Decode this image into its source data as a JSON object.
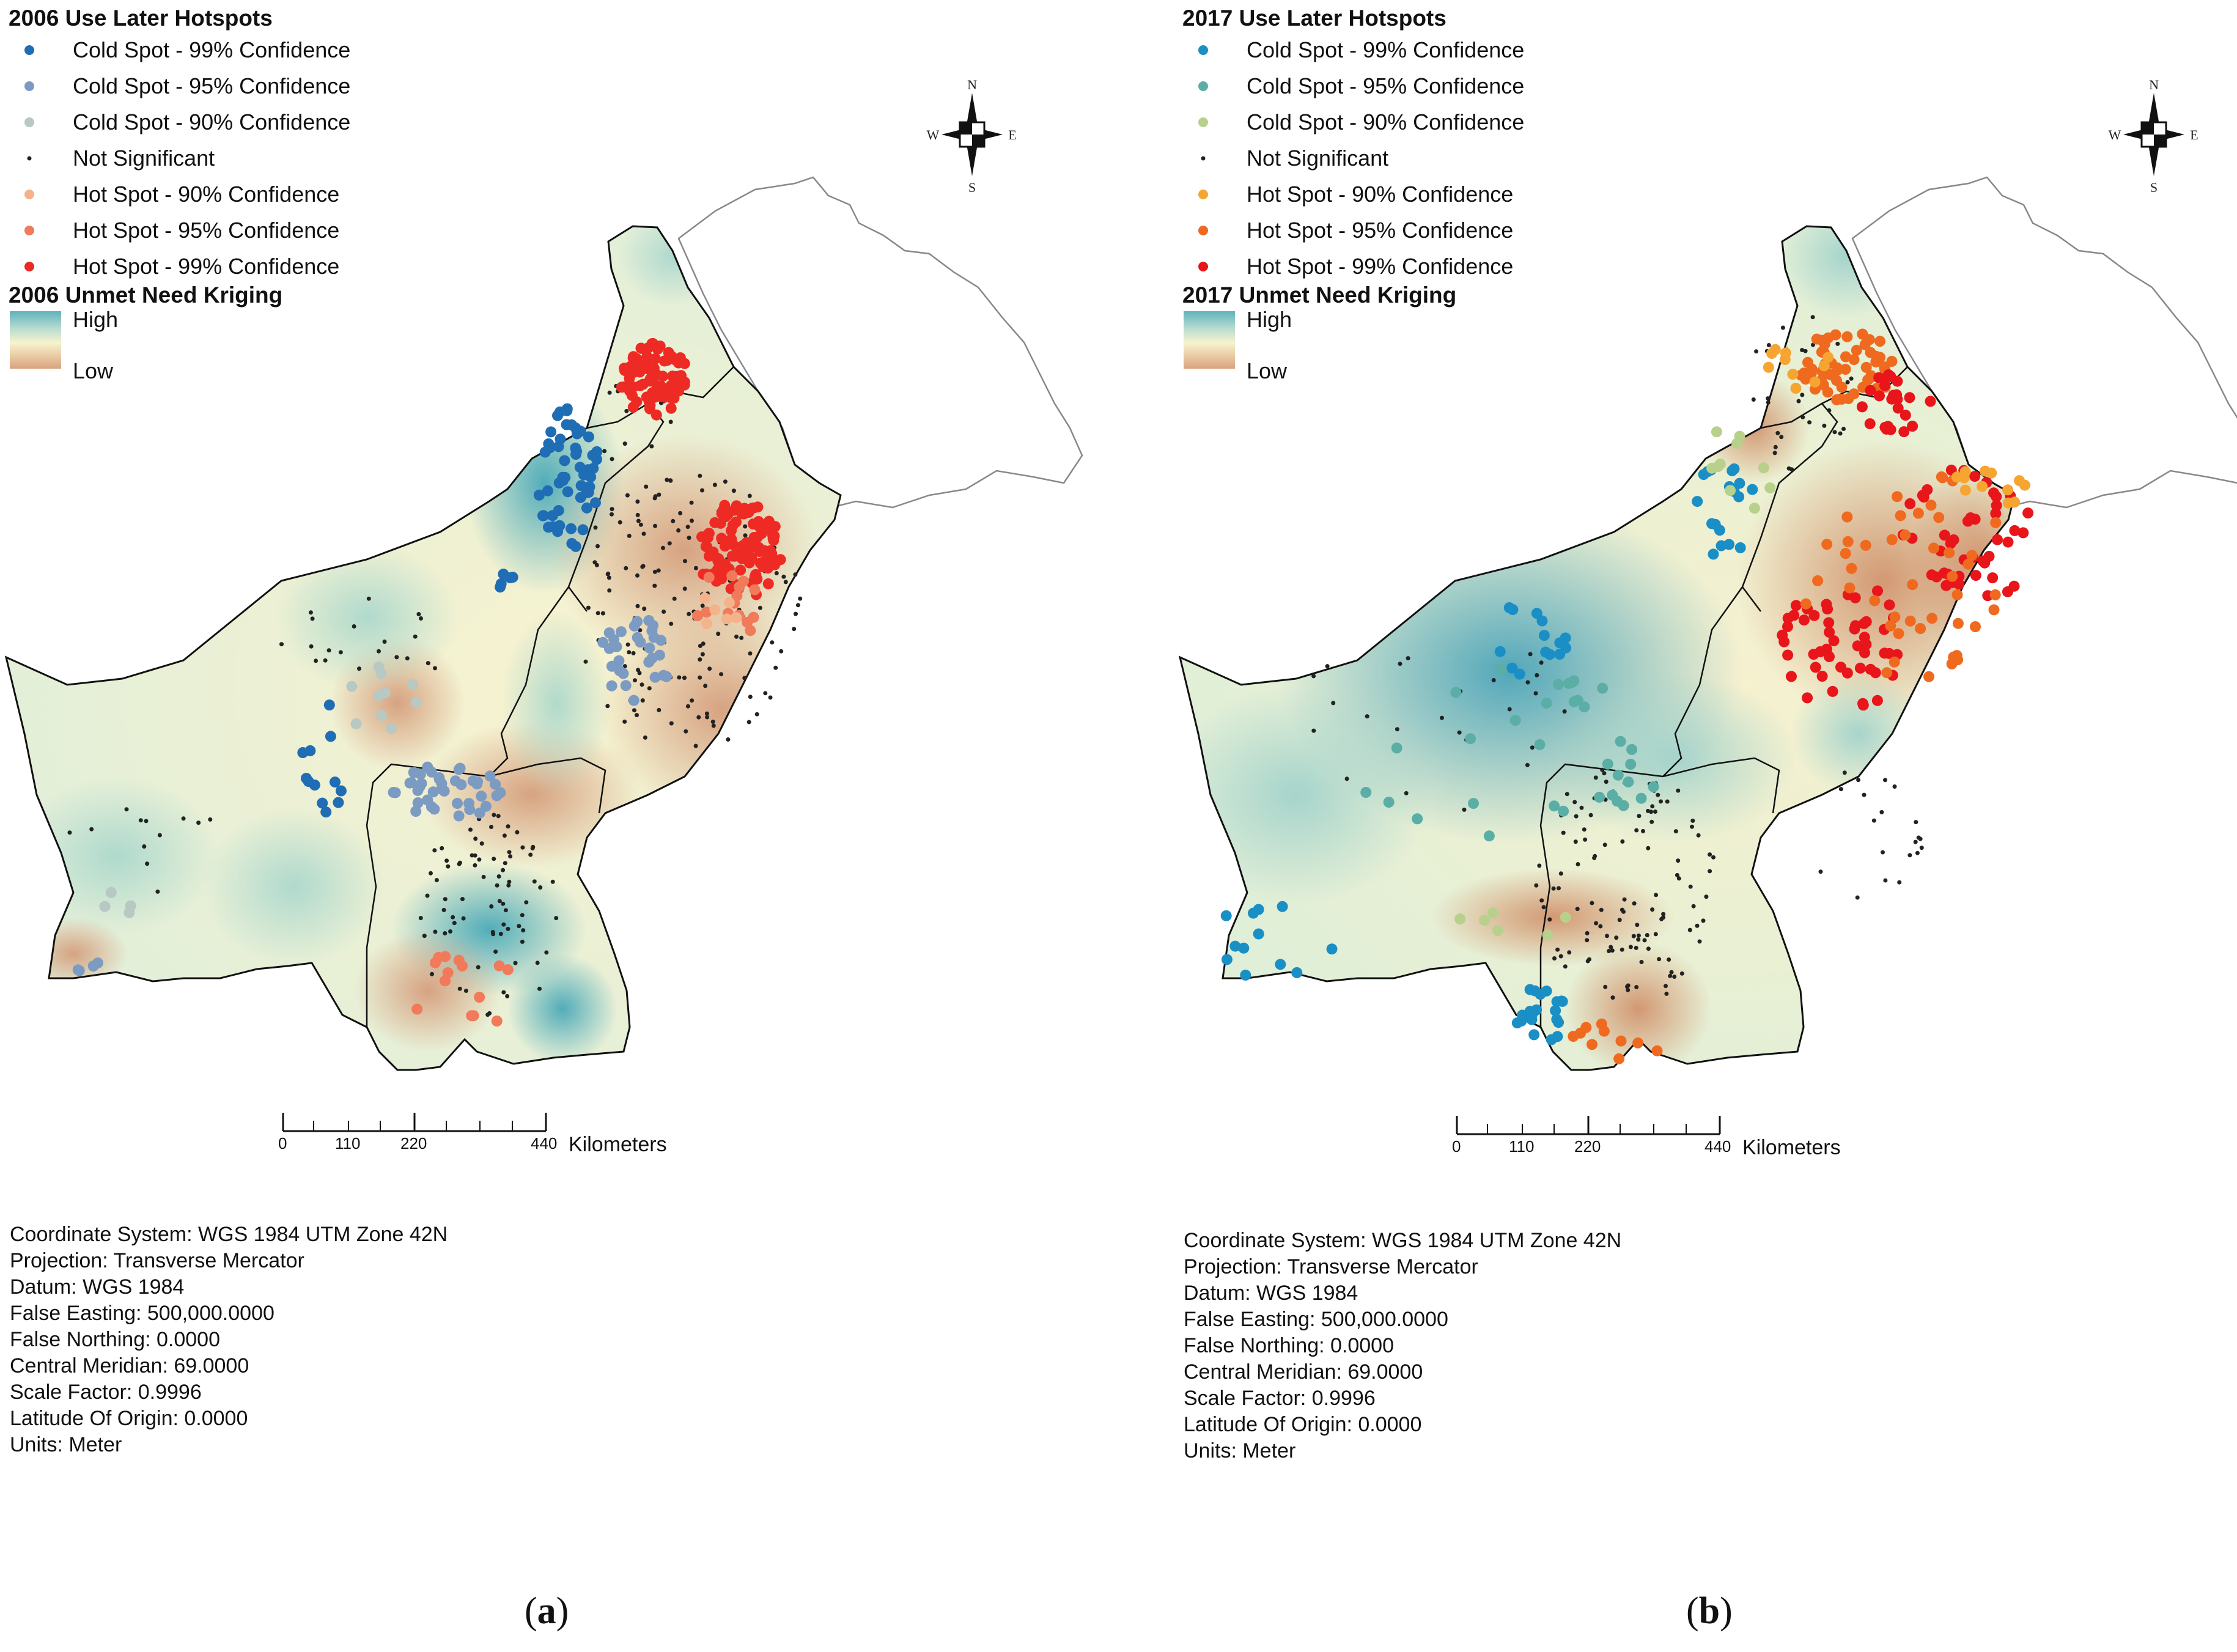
{
  "panels": [
    {
      "id": "a",
      "hotspot_title": "2006 Use Later Hotspots",
      "kriging_title": "2006 Unmet Need Kriging",
      "legend": [
        {
          "label": "Cold Spot - 99% Confidence",
          "color": "#1f6db5"
        },
        {
          "label": "Cold Spot - 95% Confidence",
          "color": "#7c9bc2"
        },
        {
          "label": "Cold Spot - 90% Confidence",
          "color": "#b8c8c2"
        },
        {
          "label": "Not Significant",
          "color": "#222222"
        },
        {
          "label": "Hot Spot - 90% Confidence",
          "color": "#f4b38a"
        },
        {
          "label": "Hot Spot - 95% Confidence",
          "color": "#f07a5a"
        },
        {
          "label": "Hot Spot - 99% Confidence",
          "color": "#ee2a24"
        }
      ],
      "kriging_high": "High",
      "kriging_low": "Low",
      "scale_ticks": [
        "0",
        "110",
        "220",
        "440"
      ],
      "scale_unit": "Kilometers",
      "caption_letter": "a",
      "info": [
        "Coordinate System: WGS 1984 UTM Zone 42N",
        "Projection: Transverse Mercator",
        "Datum: WGS 1984",
        "False Easting: 500,000.0000",
        "False Northing: 0.0000",
        "Central Meridian: 69.0000",
        "Scale Factor: 0.9996",
        "Latitude Of Origin: 0.0000",
        "Units: Meter"
      ]
    },
    {
      "id": "b",
      "hotspot_title": "2017 Use Later Hotspots",
      "kriging_title": "2017 Unmet Need Kriging",
      "legend": [
        {
          "label": "Cold Spot - 99% Confidence",
          "color": "#1a8fc6"
        },
        {
          "label": "Cold Spot - 95% Confidence",
          "color": "#5aaea6"
        },
        {
          "label": "Cold Spot - 90% Confidence",
          "color": "#b7d18c"
        },
        {
          "label": "Not Significant",
          "color": "#222222"
        },
        {
          "label": "Hot Spot - 90% Confidence",
          "color": "#f6a531"
        },
        {
          "label": "Hot Spot - 95% Confidence",
          "color": "#ef6a1f"
        },
        {
          "label": "Hot Spot - 99% Confidence",
          "color": "#e8151b"
        }
      ],
      "kriging_high": "High",
      "kriging_low": "Low",
      "scale_ticks": [
        "0",
        "110",
        "220",
        "440"
      ],
      "scale_unit": "Kilometers",
      "caption_letter": "b",
      "info": [
        "Coordinate System: WGS 1984 UTM Zone 42N",
        "Projection: Transverse Mercator",
        "Datum: WGS 1984",
        "False Easting: 500,000.0000",
        "False Northing: 0.0000",
        "Central Meridian: 69.0000",
        "Scale Factor: 0.9996",
        "Latitude Of Origin: 0.0000",
        "Units: Meter"
      ]
    }
  ],
  "compass": {
    "n": "N",
    "s": "S",
    "e": "E",
    "w": "W"
  },
  "colors": {
    "kriging_high": "#5fb3bd",
    "kriging_mid": "#f7f3cf",
    "kriging_low": "#d9a27e",
    "boundary": "#111111",
    "kashmir": "#888888"
  }
}
